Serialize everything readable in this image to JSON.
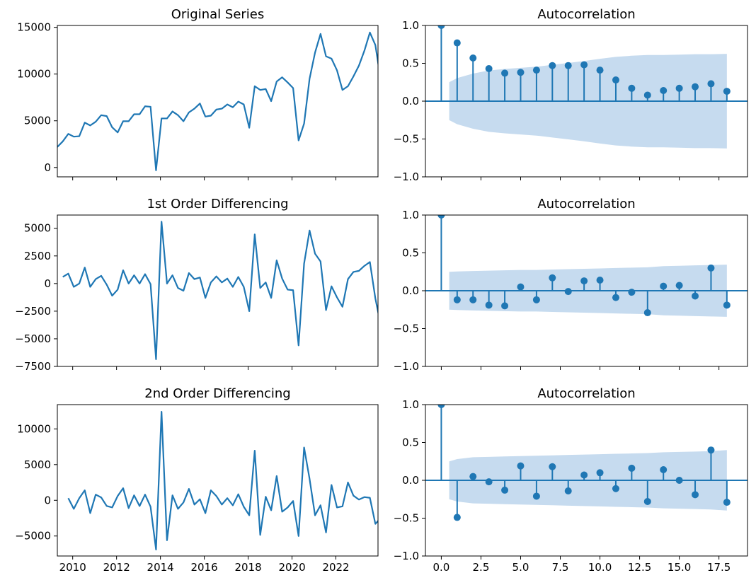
{
  "colors": {
    "line": "#1f77b4",
    "band": "#c6dbef"
  },
  "chart_data": [
    {
      "type": "line",
      "title": "Original Series",
      "xlabel": "",
      "ylabel": "",
      "xlim": [
        2009.3,
        2023.92
      ],
      "ylim": [
        -1000,
        15200
      ],
      "x_ticks": [
        2010,
        2012,
        2014,
        2016,
        2018,
        2020,
        2022
      ],
      "x_tick_labels_visible": false,
      "y_ticks": [
        0,
        5000,
        10000,
        15000
      ],
      "x_start": 2009.3,
      "x_step": 0.25,
      "values": [
        2200,
        2800,
        3600,
        3300,
        3350,
        4800,
        4500,
        4900,
        5600,
        5500,
        4300,
        3750,
        4950,
        4950,
        5700,
        5700,
        6550,
        6500,
        -300,
        5250,
        5250,
        6000,
        5600,
        4950,
        5900,
        6300,
        6850,
        5450,
        5550,
        6200,
        6300,
        6750,
        6450,
        7050,
        6750,
        4250,
        8700,
        8300,
        8400,
        7100,
        9200,
        9650,
        9100,
        8500,
        2900,
        4700,
        9500,
        12300,
        14300,
        11900,
        11650,
        10400,
        8300,
        8700,
        9750,
        10900,
        12500,
        14450,
        13100,
        9300
      ],
      "grid": false,
      "legend": "none"
    },
    {
      "type": "stem",
      "title": "Autocorrelation",
      "xlabel": "",
      "ylabel": "",
      "xlim": [
        -1,
        19.3
      ],
      "ylim": [
        -1.0,
        1.0
      ],
      "x_ticks": [
        0,
        2.5,
        5,
        7.5,
        10,
        12.5,
        15,
        17.5
      ],
      "x_tick_labels_visible": false,
      "y_ticks": [
        -1.0,
        -0.5,
        0.0,
        0.5,
        1.0
      ],
      "lags": [
        0,
        1,
        2,
        3,
        4,
        5,
        6,
        7,
        8,
        9,
        10,
        11,
        12,
        13,
        14,
        15,
        16,
        17,
        18
      ],
      "values": [
        1.0,
        0.77,
        0.57,
        0.43,
        0.37,
        0.38,
        0.41,
        0.47,
        0.47,
        0.48,
        0.41,
        0.28,
        0.17,
        0.08,
        0.14,
        0.17,
        0.19,
        0.23,
        0.13
      ],
      "confidence_band": [
        0.25,
        0.305,
        0.365,
        0.405,
        0.425,
        0.44,
        0.455,
        0.48,
        0.505,
        0.53,
        0.56,
        0.585,
        0.6,
        0.61,
        0.61,
        0.615,
        0.62,
        0.62,
        0.625
      ],
      "grid": false,
      "legend": "none"
    },
    {
      "type": "line",
      "title": "1st Order Differencing",
      "xlabel": "",
      "ylabel": "",
      "xlim": [
        2009.3,
        2023.92
      ],
      "ylim": [
        -7500,
        6200
      ],
      "x_ticks": [
        2010,
        2012,
        2014,
        2016,
        2018,
        2020,
        2022
      ],
      "x_tick_labels_visible": false,
      "y_ticks": [
        -7500,
        -5000,
        -2500,
        0,
        2500,
        5000
      ],
      "x_start": 2009.55,
      "x_step": 0.25,
      "values": [
        600,
        900,
        -300,
        0,
        1450,
        -300,
        400,
        700,
        -100,
        -1100,
        -550,
        1200,
        0,
        750,
        0,
        850,
        -50,
        -6850,
        5600,
        0,
        750,
        -400,
        -650,
        950,
        400,
        550,
        -1300,
        100,
        650,
        100,
        450,
        -300,
        600,
        -300,
        -2500,
        4450,
        -400,
        100,
        -1300,
        2100,
        450,
        -550,
        -600,
        -5600,
        1800,
        4800,
        2700,
        2000,
        -2400,
        -250,
        -1250,
        -2100,
        400,
        1050,
        1150,
        1600,
        1950,
        -1350,
        -3800
      ],
      "grid": false,
      "legend": "none"
    },
    {
      "type": "stem",
      "title": "Autocorrelation",
      "xlabel": "",
      "ylabel": "",
      "xlim": [
        -1,
        19.3
      ],
      "ylim": [
        -1.0,
        1.0
      ],
      "x_ticks": [
        0,
        2.5,
        5,
        7.5,
        10,
        12.5,
        15,
        17.5
      ],
      "x_tick_labels_visible": false,
      "y_ticks": [
        -1.0,
        -0.5,
        0.0,
        0.5,
        1.0
      ],
      "lags": [
        0,
        1,
        2,
        3,
        4,
        5,
        6,
        7,
        8,
        9,
        10,
        11,
        12,
        13,
        14,
        15,
        16,
        17,
        18
      ],
      "values": [
        1.0,
        -0.12,
        -0.12,
        -0.19,
        -0.2,
        0.05,
        -0.12,
        0.17,
        -0.01,
        0.13,
        0.14,
        -0.09,
        -0.02,
        -0.29,
        0.06,
        0.07,
        -0.07,
        0.3,
        -0.19
      ],
      "confidence_band": [
        0.25,
        0.255,
        0.26,
        0.265,
        0.27,
        0.275,
        0.275,
        0.28,
        0.285,
        0.29,
        0.295,
        0.3,
        0.305,
        0.31,
        0.325,
        0.33,
        0.335,
        0.34,
        0.345
      ],
      "grid": false,
      "legend": "none"
    },
    {
      "type": "line",
      "title": "2nd Order Differencing",
      "xlabel": "",
      "ylabel": "",
      "xlim": [
        2009.3,
        2023.92
      ],
      "ylim": [
        -7800,
        13400
      ],
      "x_ticks": [
        2010,
        2012,
        2014,
        2016,
        2018,
        2020,
        2022
      ],
      "x_tick_labels": [
        "2010",
        "2012",
        "2014",
        "2016",
        "2018",
        "2020",
        "2022"
      ],
      "x_tick_labels_visible": true,
      "y_ticks": [
        -5000,
        0,
        5000,
        10000
      ],
      "x_start": 2009.8,
      "x_step": 0.25,
      "values": [
        300,
        -1200,
        300,
        1400,
        -1800,
        800,
        400,
        -800,
        -1000,
        600,
        1700,
        -1100,
        700,
        -800,
        800,
        -900,
        -6900,
        12400,
        -5600,
        700,
        -1200,
        -300,
        1600,
        -600,
        150,
        -1800,
        1400,
        600,
        -600,
        300,
        -700,
        850,
        -900,
        -2100,
        6950,
        -4850,
        500,
        -1400,
        3400,
        -1600,
        -1000,
        -100,
        -5000,
        7400,
        3000,
        -2100,
        -700,
        -4500,
        2150,
        -1000,
        -850,
        2500,
        650,
        100,
        450,
        350,
        -3300,
        -2450
      ],
      "grid": false,
      "legend": "none"
    },
    {
      "type": "stem",
      "title": "Autocorrelation",
      "xlabel": "",
      "ylabel": "",
      "xlim": [
        -1,
        19.3
      ],
      "ylim": [
        -1.0,
        1.0
      ],
      "x_ticks": [
        0,
        2.5,
        5,
        7.5,
        10,
        12.5,
        15,
        17.5
      ],
      "x_tick_labels": [
        "0.0",
        "2.5",
        "5.0",
        "7.5",
        "10.0",
        "12.5",
        "15.0",
        "17.5"
      ],
      "x_tick_labels_visible": true,
      "y_ticks": [
        -1.0,
        -0.5,
        0.0,
        0.5,
        1.0
      ],
      "lags": [
        0,
        1,
        2,
        3,
        4,
        5,
        6,
        7,
        8,
        9,
        10,
        11,
        12,
        13,
        14,
        15,
        16,
        17,
        18
      ],
      "values": [
        1.0,
        -0.49,
        0.05,
        -0.02,
        -0.13,
        0.19,
        -0.21,
        0.18,
        -0.14,
        0.07,
        0.1,
        -0.11,
        0.16,
        -0.28,
        0.14,
        0.0,
        -0.19,
        0.4,
        -0.29
      ],
      "confidence_band": [
        0.25,
        0.28,
        0.305,
        0.31,
        0.315,
        0.32,
        0.325,
        0.33,
        0.335,
        0.34,
        0.345,
        0.35,
        0.355,
        0.36,
        0.37,
        0.375,
        0.38,
        0.385,
        0.4
      ],
      "grid": false,
      "legend": "none"
    }
  ]
}
